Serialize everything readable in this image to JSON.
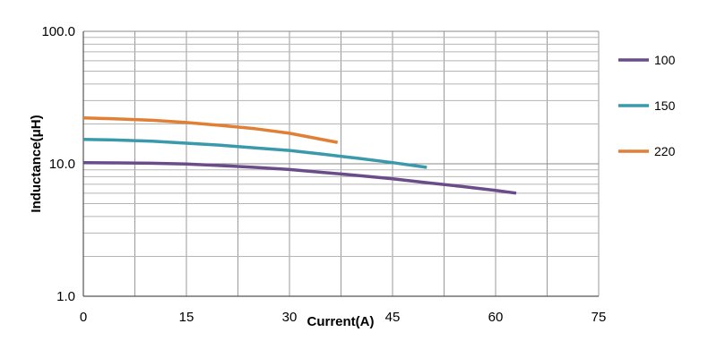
{
  "chart_data": {
    "type": "line",
    "xlabel": "Current(A)",
    "ylabel": "Inductance(μH)",
    "xlim": [
      0,
      75
    ],
    "ylim": [
      1,
      100
    ],
    "yscale": "log",
    "grid": true,
    "legend_position": "right",
    "x_ticks": [
      "0",
      "15",
      "30",
      "45",
      "60",
      "75"
    ],
    "y_ticks": [
      "1.0",
      "10.0",
      "100.0"
    ],
    "series": [
      {
        "name": "100",
        "color": "#6b4c8a",
        "x": [
          0,
          5,
          10,
          15,
          20,
          25,
          30,
          35,
          40,
          45,
          50,
          55,
          60,
          63
        ],
        "y": [
          10.2,
          10.15,
          10.1,
          9.95,
          9.7,
          9.4,
          9.05,
          8.6,
          8.15,
          7.7,
          7.2,
          6.75,
          6.3,
          6.0
        ]
      },
      {
        "name": "150",
        "color": "#3a9aab",
        "x": [
          0,
          5,
          10,
          15,
          20,
          25,
          30,
          35,
          40,
          45,
          50
        ],
        "y": [
          15.3,
          15.1,
          14.8,
          14.3,
          13.8,
          13.2,
          12.6,
          11.8,
          11.0,
          10.2,
          9.4
        ]
      },
      {
        "name": "220",
        "color": "#e07f35",
        "x": [
          0,
          5,
          10,
          15,
          20,
          25,
          30,
          37
        ],
        "y": [
          22.2,
          21.8,
          21.3,
          20.5,
          19.5,
          18.4,
          17.0,
          14.5
        ]
      }
    ]
  }
}
